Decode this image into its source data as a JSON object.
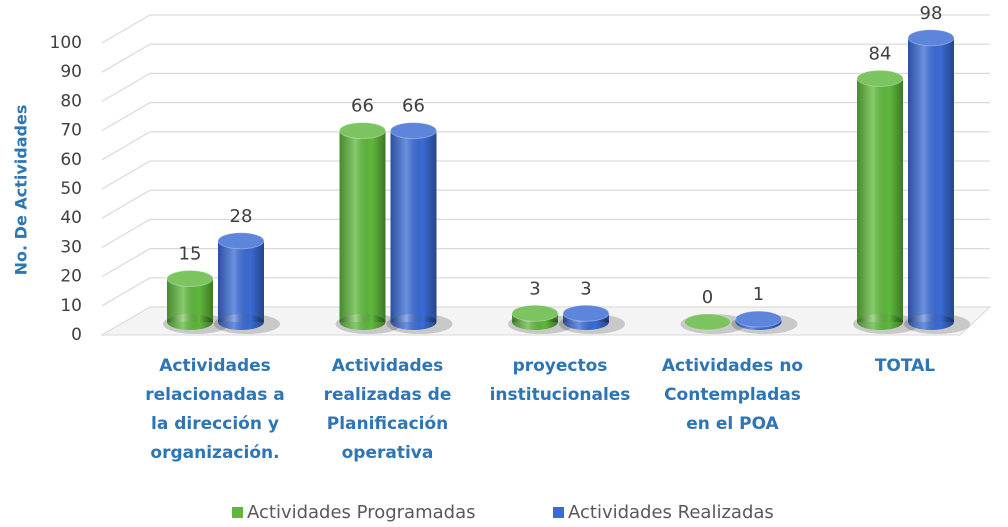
{
  "chart_data": {
    "type": "bar3d",
    "y_axis_label": "No. De Actividades",
    "categories": [
      "Actividades\nrelacionadas a\nla dirección y\norganización.",
      "Actividades\nrealizadas de\nPlanificación\noperativa",
      "proyectos\ninstitucionales",
      "Actividades no\nContempladas\nen el POA",
      "TOTAL"
    ],
    "series": [
      {
        "name": "Actividades Programadas",
        "color": "#5fb83c",
        "values": [
          15,
          66,
          3,
          0,
          84
        ]
      },
      {
        "name": "Actividades Realizadas",
        "color": "#3a6bd4",
        "values": [
          28,
          66,
          3,
          1,
          98
        ]
      }
    ],
    "ylim": [
      0,
      100
    ],
    "yticks": [
      0,
      10,
      20,
      30,
      40,
      50,
      60,
      70,
      80,
      90,
      100
    ],
    "grid": true
  }
}
